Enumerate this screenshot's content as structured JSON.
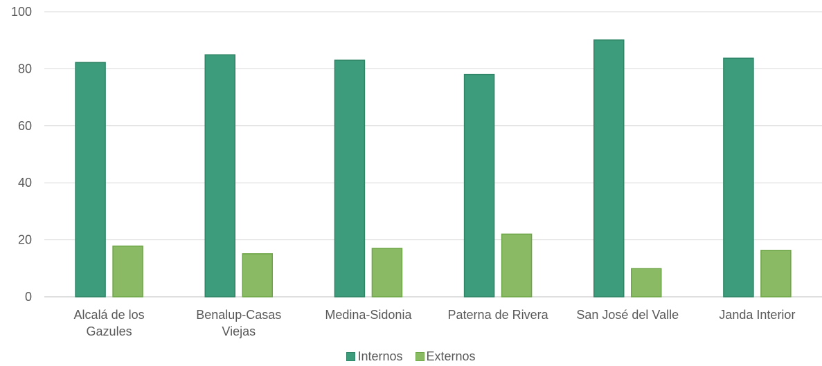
{
  "chart_data": {
    "type": "bar",
    "categories": [
      [
        "Alcalá de los",
        "Gazules"
      ],
      [
        "Benalup-Casas",
        "Viejas"
      ],
      [
        "Medina-Sidonia"
      ],
      [
        "Paterna de Rivera"
      ],
      [
        "San José del Valle"
      ],
      [
        "Janda Interior"
      ]
    ],
    "series": [
      {
        "name": "Internos",
        "color": "#3d9c7b",
        "stroke": "#2e8566",
        "values": [
          82.2,
          84.9,
          83.0,
          78.0,
          90.1,
          83.7
        ]
      },
      {
        "name": "Externos",
        "color": "#8aba64",
        "stroke": "#6ea548",
        "values": [
          17.8,
          15.1,
          17.0,
          22.0,
          9.9,
          16.3
        ]
      }
    ],
    "ylim": [
      0,
      100
    ],
    "yticks": [
      0,
      20,
      40,
      60,
      80,
      100
    ],
    "grid": true,
    "legend_position": "bottom",
    "title": "",
    "xlabel": "",
    "ylabel": ""
  }
}
